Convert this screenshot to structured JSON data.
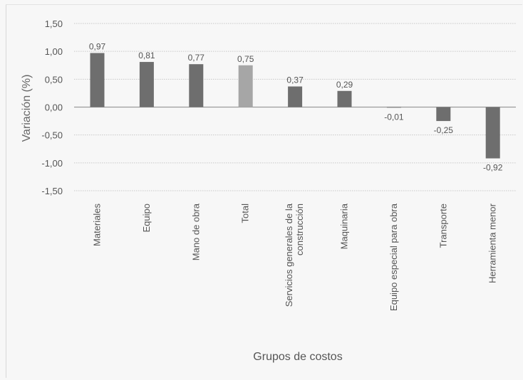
{
  "chart_data": {
    "type": "bar",
    "title": "",
    "xlabel": "Grupos de costos",
    "ylabel": "Variación (%)",
    "ylim": [
      -1.5,
      1.5
    ],
    "yticks": [
      1.5,
      1.0,
      0.5,
      0.0,
      -0.5,
      -1.0,
      -1.5
    ],
    "ytick_labels": [
      "1,50",
      "1,00",
      "0,50",
      "0,00",
      "-0,50",
      "-1,00",
      "-1,50"
    ],
    "categories": [
      "Materiales",
      "Equipo",
      "Mano de obra",
      "Total",
      "Servicios generales de la construcción",
      "Maquinaria",
      "Equipo especial para obra",
      "Transporte",
      "Herramienta menor"
    ],
    "values": [
      0.97,
      0.81,
      0.77,
      0.75,
      0.37,
      0.29,
      -0.01,
      -0.25,
      -0.92
    ],
    "value_labels": [
      "0,97",
      "0,81",
      "0,77",
      "0,75",
      "0,37",
      "0,29",
      "-0,01",
      "-0,25",
      "-0,92"
    ],
    "grid": true,
    "colors": {
      "bar": "#6e6e6e",
      "highlight": "#a6a6a6",
      "grid": "#c8c8c8",
      "text": "#555555"
    }
  }
}
